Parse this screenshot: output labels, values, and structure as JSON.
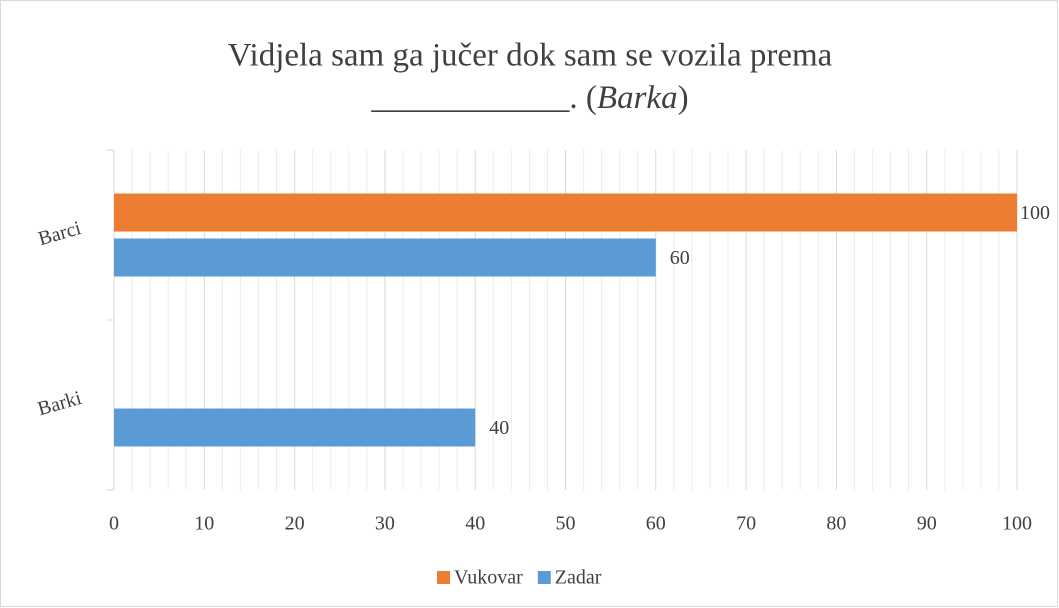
{
  "chart_data": {
    "type": "bar",
    "orientation": "horizontal",
    "title": {
      "line1": "Vidjela sam ga jučer dok sam se vozila prema",
      "line2": "____________. (",
      "italic": "Barka",
      "end": ")"
    },
    "categories": [
      "Barci",
      "Barki"
    ],
    "series": [
      {
        "name": "Vukovar",
        "color": "#ed7d31",
        "values": [
          100,
          null
        ]
      },
      {
        "name": "Zadar",
        "color": "#5b9bd5",
        "values": [
          60,
          40
        ]
      }
    ],
    "xlim": [
      0,
      100
    ],
    "xticks": [
      0,
      10,
      20,
      30,
      40,
      50,
      60,
      70,
      80,
      90,
      100
    ],
    "xminorticks": [
      2,
      4,
      6,
      8,
      12,
      14,
      16,
      18,
      22,
      24,
      26,
      28,
      32,
      34,
      36,
      38,
      42,
      44,
      46,
      48,
      52,
      54,
      56,
      58,
      62,
      64,
      66,
      68,
      72,
      74,
      76,
      78,
      82,
      84,
      86,
      88,
      92,
      94,
      96,
      98
    ],
    "grid": true,
    "legend": "bottom"
  }
}
